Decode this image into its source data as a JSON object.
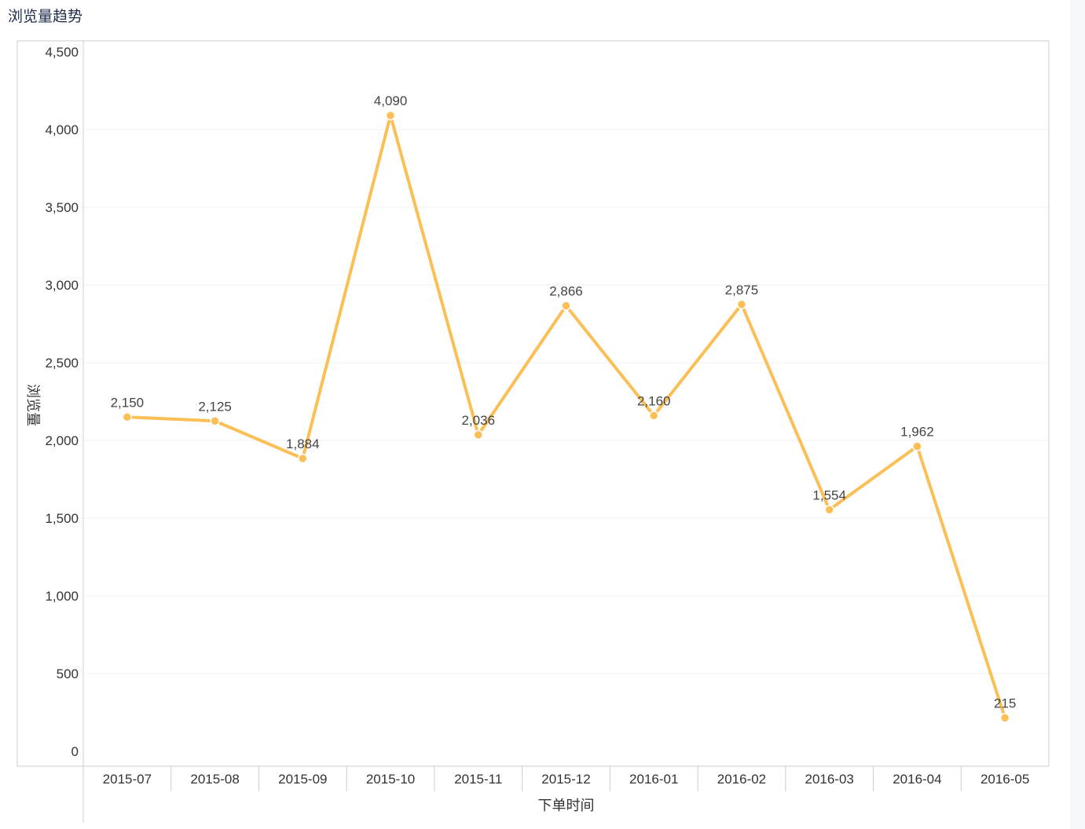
{
  "page": {
    "title": "浏览量趋势"
  },
  "chart_data": {
    "type": "line",
    "title": "浏览量趋势",
    "xlabel": "下单时间",
    "ylabel": "浏览量",
    "ylim": [
      0,
      4500
    ],
    "yticks": [
      0,
      500,
      1000,
      1500,
      2000,
      2500,
      3000,
      3500,
      4000,
      4500
    ],
    "ytick_labels": [
      "0",
      "500",
      "1,000",
      "1,500",
      "2,000",
      "2,500",
      "3,000",
      "3,500",
      "4,000",
      "4,500"
    ],
    "categories": [
      "2015-07",
      "2015-08",
      "2015-09",
      "2015-10",
      "2015-11",
      "2015-12",
      "2016-01",
      "2016-02",
      "2016-03",
      "2016-04",
      "2016-05"
    ],
    "values": [
      2150,
      2125,
      1884,
      4090,
      2036,
      2866,
      2160,
      2875,
      1554,
      1962,
      215
    ],
    "value_labels": [
      "2,150",
      "2,125",
      "1,884",
      "4,090",
      "2,036",
      "2,866",
      "2,160",
      "2,875",
      "1,554",
      "1,962",
      "215"
    ],
    "grid": true,
    "legend": "none",
    "line_color": "#fbbf56",
    "grid_color": "#f1f1f1",
    "axis_color": "#cccccc"
  }
}
